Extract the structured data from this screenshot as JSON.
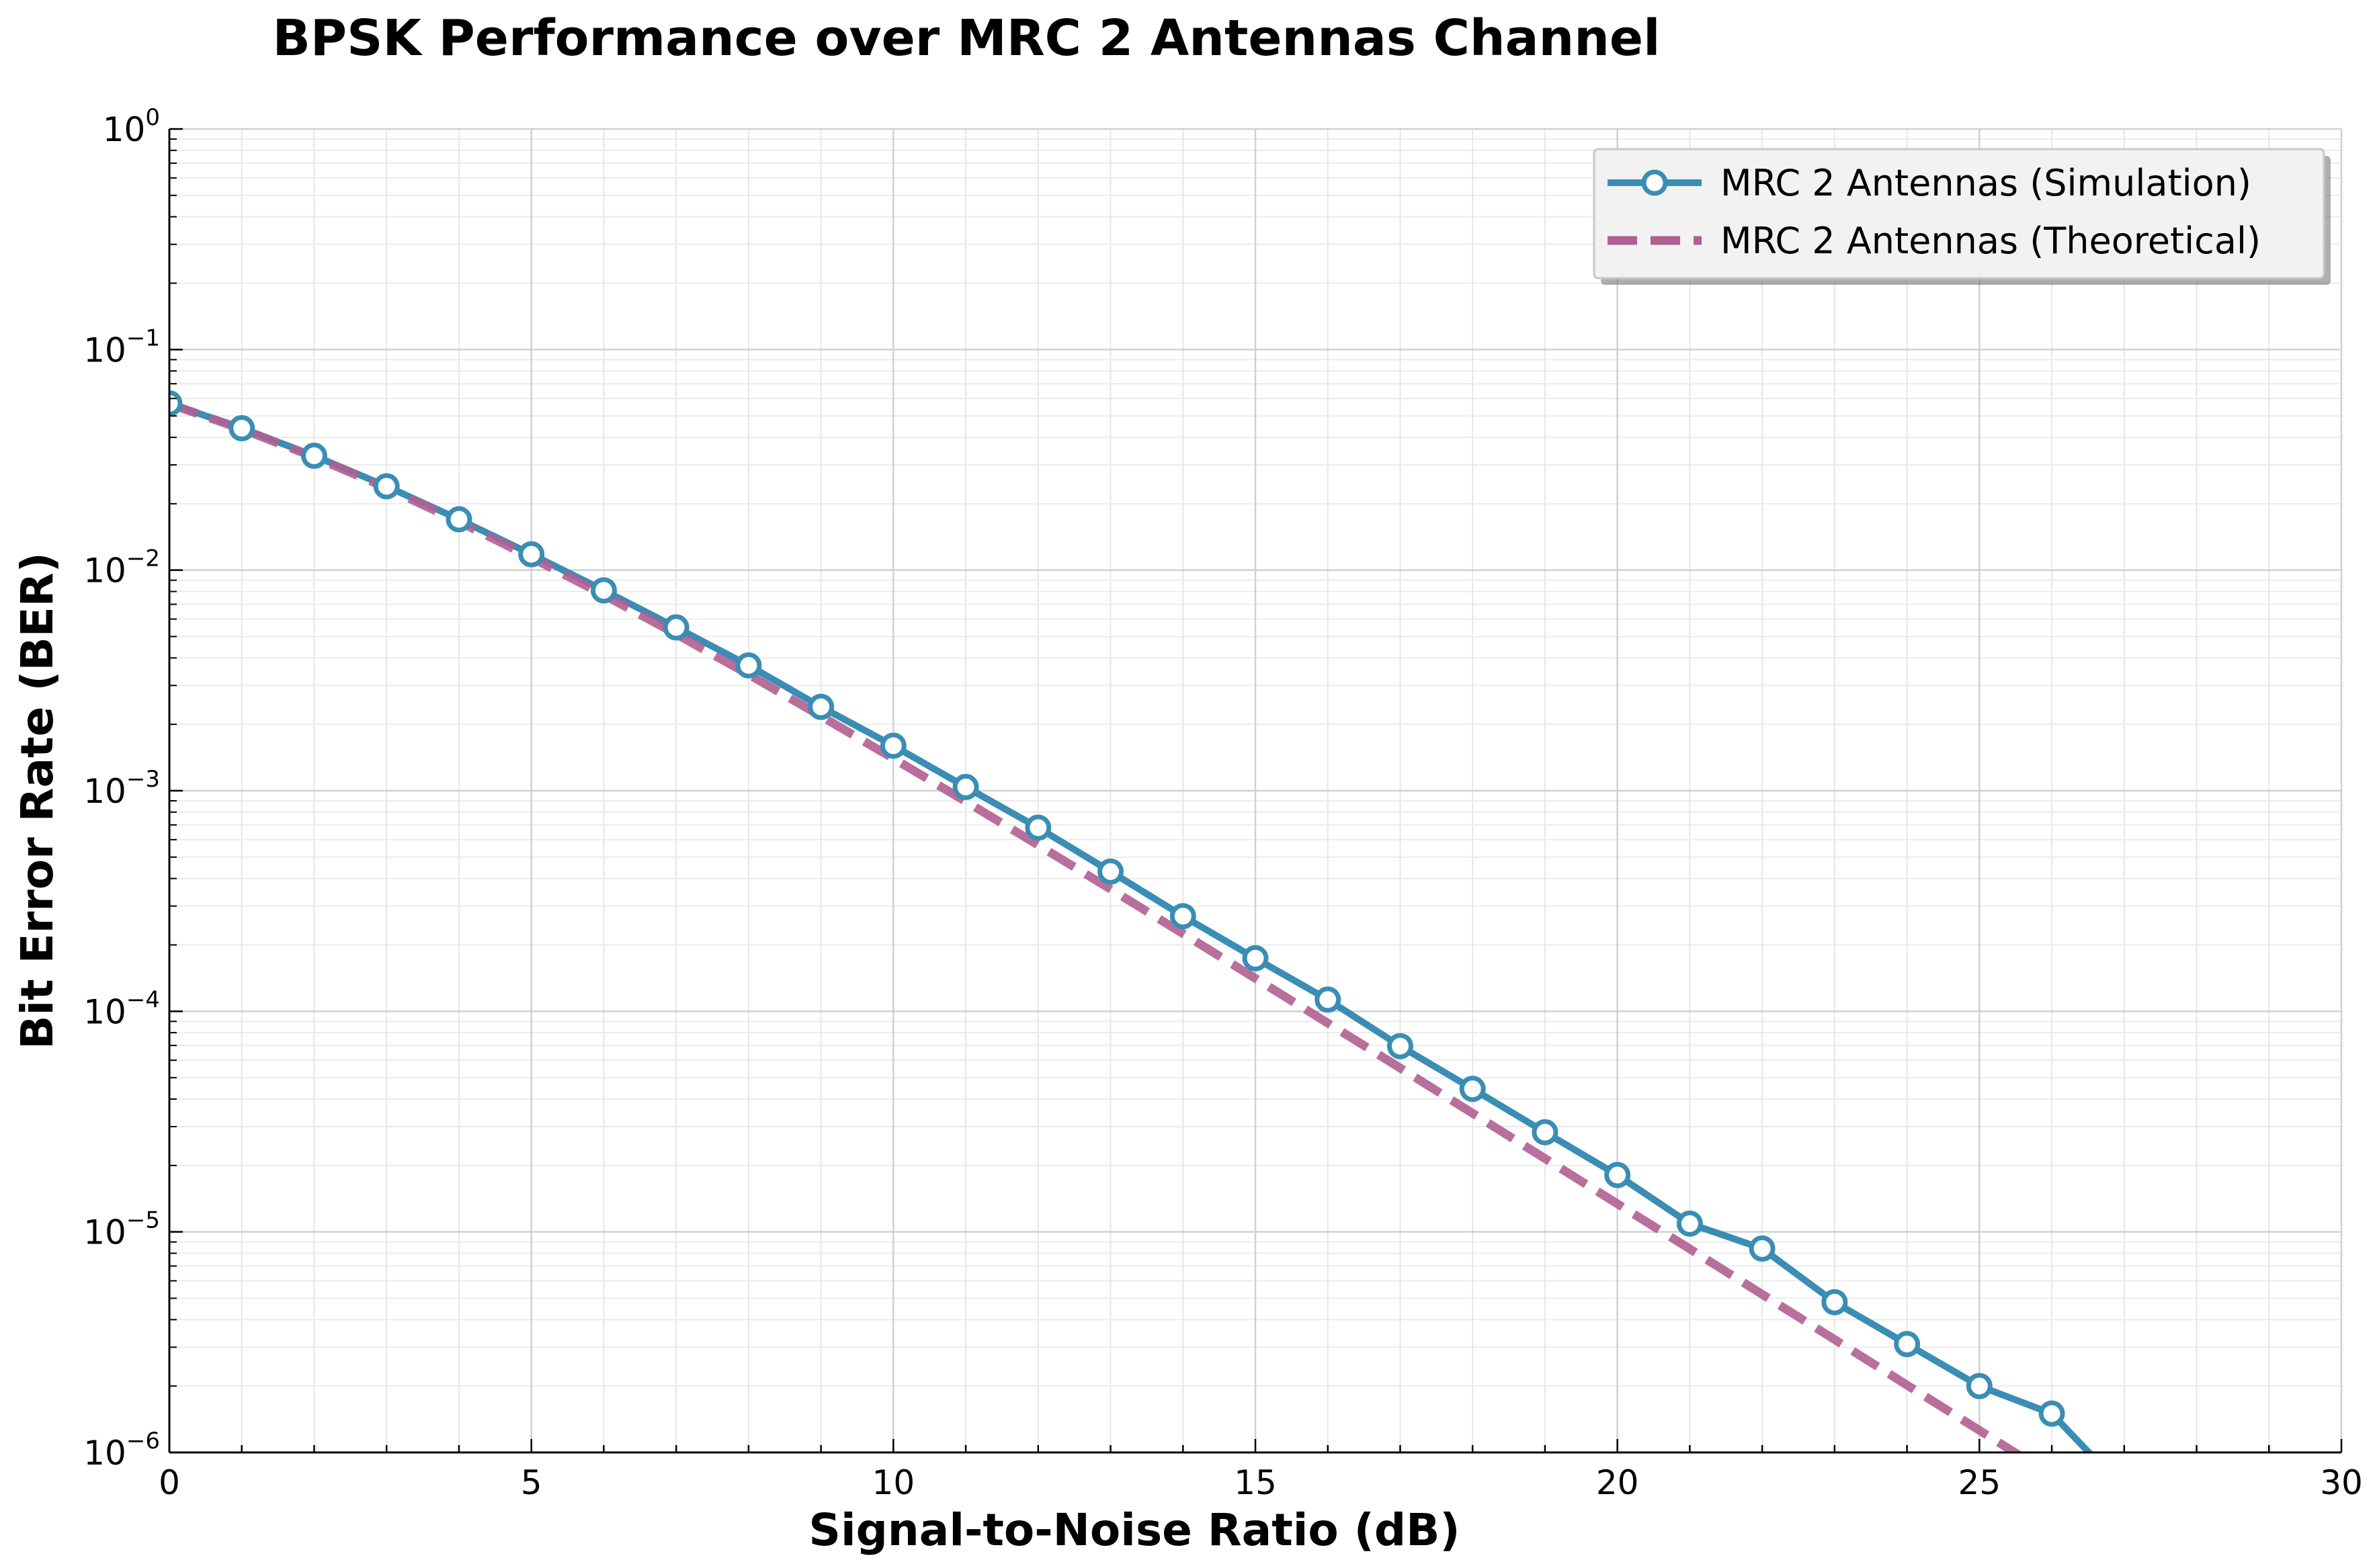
{
  "chart_data": {
    "type": "line",
    "title": "BPSK Performance over MRC 2 Antennas Channel",
    "xlabel": "Signal-to-Noise Ratio (dB)",
    "ylabel": "Bit Error Rate (BER)",
    "xlim": [
      0,
      30
    ],
    "ylim": [
      1e-06,
      1
    ],
    "yscale": "log",
    "grid": true,
    "legend_position": "top-right",
    "x_ticks": [
      "0",
      "5",
      "10",
      "15",
      "20",
      "25",
      "30"
    ],
    "y_ticks": [
      {
        "base": "10",
        "exp": "0"
      },
      {
        "base": "10",
        "exp": "−1"
      },
      {
        "base": "10",
        "exp": "−2"
      },
      {
        "base": "10",
        "exp": "−3"
      },
      {
        "base": "10",
        "exp": "−4"
      },
      {
        "base": "10",
        "exp": "−5"
      },
      {
        "base": "10",
        "exp": "−6"
      }
    ],
    "series": [
      {
        "name": "MRC 2 Antennas (Simulation)",
        "color": "#3a8db4",
        "style": "solid",
        "marker": "circle",
        "x": [
          0,
          1,
          2,
          3,
          4,
          5,
          6,
          7,
          8,
          9,
          10,
          11,
          12,
          13,
          14,
          15,
          16,
          17,
          18,
          19,
          20,
          21,
          22,
          23,
          24,
          25,
          26,
          27
        ],
        "y": [
          0.057,
          0.044,
          0.033,
          0.024,
          0.017,
          0.0118,
          0.0081,
          0.0055,
          0.0037,
          0.0024,
          0.0016,
          0.00104,
          0.00068,
          0.00043,
          0.00027,
          0.000174,
          0.000113,
          6.95e-05,
          4.45e-05,
          2.83e-05,
          1.81e-05,
          1.09e-05,
          8.4e-06,
          4.8e-06,
          3.1e-06,
          2e-06,
          1.5e-06,
          6.8e-07
        ]
      },
      {
        "name": "MRC 2 Antennas (Theoretical)",
        "color": "#b15f91",
        "style": "dashed",
        "marker": "none",
        "x": [
          0,
          1,
          2,
          3,
          4,
          5,
          6,
          7,
          8,
          9,
          10,
          11,
          12,
          13,
          14,
          15,
          16,
          17,
          18,
          19,
          20,
          21,
          22,
          23,
          24,
          25,
          26,
          27
        ],
        "y": [
          0.0567,
          0.0436,
          0.0326,
          0.0236,
          0.0166,
          0.0114,
          0.00773,
          0.00513,
          0.00337,
          0.00218,
          0.0014,
          0.000894,
          0.000567,
          0.000358,
          0.000225,
          0.000141,
          8.84e-05,
          5.53e-05,
          3.45e-05,
          2.15e-05,
          1.34e-05,
          8.37e-06,
          5.21e-06,
          3.25e-06,
          2.02e-06,
          1.26e-06,
          7.84e-07,
          4.88e-07
        ]
      }
    ]
  }
}
